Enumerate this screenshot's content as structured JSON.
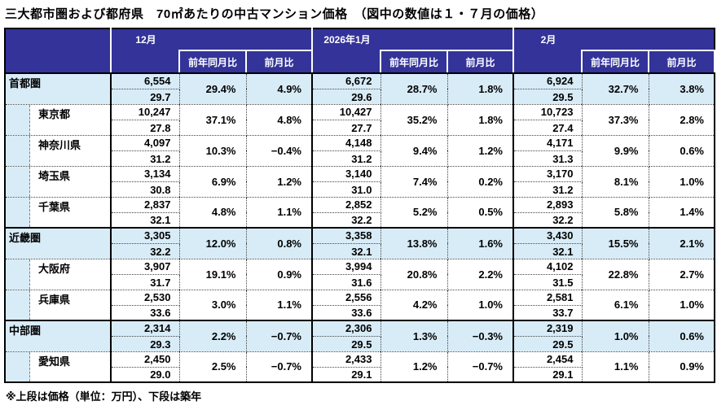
{
  "title": "三大都市圏および都府県　70㎡あたりの中古マンション価格　（図中の数値は１・７月の価格）",
  "footer_note": "※上段は価格（単位：万円）、下段は築年",
  "colors": {
    "header_bg": "#333399",
    "header_text": "#FFFFFF",
    "region_row_bg": "#D8ECF7",
    "border": "#000000"
  },
  "header": {
    "months": [
      "12月",
      "2026年1月",
      "2月"
    ],
    "yoy_label": "前年同月比",
    "mom_label": "前月比"
  },
  "rows": [
    {
      "name": "首都圏",
      "type": "region",
      "group_end": false,
      "months": [
        {
          "price": "6,554",
          "age": "29.7",
          "yoy": "29.4%",
          "mom": "4.9%"
        },
        {
          "price": "6,672",
          "age": "29.6",
          "yoy": "28.7%",
          "mom": "1.8%"
        },
        {
          "price": "6,924",
          "age": "29.5",
          "yoy": "32.7%",
          "mom": "3.8%"
        }
      ]
    },
    {
      "name": "東京都",
      "type": "pref",
      "group_end": false,
      "months": [
        {
          "price": "10,247",
          "age": "27.8",
          "yoy": "37.1%",
          "mom": "4.8%"
        },
        {
          "price": "10,427",
          "age": "27.7",
          "yoy": "35.2%",
          "mom": "1.8%"
        },
        {
          "price": "10,723",
          "age": "27.4",
          "yoy": "37.3%",
          "mom": "2.8%"
        }
      ]
    },
    {
      "name": "神奈川県",
      "type": "pref",
      "group_end": false,
      "months": [
        {
          "price": "4,097",
          "age": "31.2",
          "yoy": "10.3%",
          "mom": "−0.4%"
        },
        {
          "price": "4,148",
          "age": "31.2",
          "yoy": "9.4%",
          "mom": "1.2%"
        },
        {
          "price": "4,171",
          "age": "31.3",
          "yoy": "9.9%",
          "mom": "0.6%"
        }
      ]
    },
    {
      "name": "埼玉県",
      "type": "pref",
      "group_end": false,
      "months": [
        {
          "price": "3,134",
          "age": "30.8",
          "yoy": "6.9%",
          "mom": "1.2%"
        },
        {
          "price": "3,140",
          "age": "31.0",
          "yoy": "7.4%",
          "mom": "0.2%"
        },
        {
          "price": "3,170",
          "age": "31.2",
          "yoy": "8.1%",
          "mom": "1.0%"
        }
      ]
    },
    {
      "name": "千葉県",
      "type": "pref",
      "group_end": true,
      "months": [
        {
          "price": "2,837",
          "age": "32.1",
          "yoy": "4.8%",
          "mom": "1.1%"
        },
        {
          "price": "2,852",
          "age": "32.2",
          "yoy": "5.2%",
          "mom": "0.5%"
        },
        {
          "price": "2,893",
          "age": "32.2",
          "yoy": "5.8%",
          "mom": "1.4%"
        }
      ]
    },
    {
      "name": "近畿圏",
      "type": "region",
      "group_end": false,
      "months": [
        {
          "price": "3,305",
          "age": "32.2",
          "yoy": "12.0%",
          "mom": "0.8%"
        },
        {
          "price": "3,358",
          "age": "32.1",
          "yoy": "13.8%",
          "mom": "1.6%"
        },
        {
          "price": "3,430",
          "age": "32.1",
          "yoy": "15.5%",
          "mom": "2.1%"
        }
      ]
    },
    {
      "name": "大阪府",
      "type": "pref",
      "group_end": false,
      "months": [
        {
          "price": "3,907",
          "age": "31.7",
          "yoy": "19.1%",
          "mom": "0.9%"
        },
        {
          "price": "3,994",
          "age": "31.6",
          "yoy": "20.8%",
          "mom": "2.2%"
        },
        {
          "price": "4,102",
          "age": "31.5",
          "yoy": "22.8%",
          "mom": "2.7%"
        }
      ]
    },
    {
      "name": "兵庫県",
      "type": "pref",
      "group_end": true,
      "months": [
        {
          "price": "2,530",
          "age": "33.6",
          "yoy": "3.0%",
          "mom": "1.1%"
        },
        {
          "price": "2,556",
          "age": "33.6",
          "yoy": "4.2%",
          "mom": "1.0%"
        },
        {
          "price": "2,581",
          "age": "33.7",
          "yoy": "6.1%",
          "mom": "1.0%"
        }
      ]
    },
    {
      "name": "中部圏",
      "type": "region",
      "group_end": false,
      "months": [
        {
          "price": "2,314",
          "age": "29.3",
          "yoy": "2.2%",
          "mom": "−0.7%"
        },
        {
          "price": "2,306",
          "age": "29.5",
          "yoy": "1.3%",
          "mom": "−0.3%"
        },
        {
          "price": "2,319",
          "age": "29.5",
          "yoy": "1.0%",
          "mom": "0.6%"
        }
      ]
    },
    {
      "name": "愛知県",
      "type": "pref",
      "group_end": true,
      "months": [
        {
          "price": "2,450",
          "age": "29.0",
          "yoy": "2.5%",
          "mom": "−0.7%"
        },
        {
          "price": "2,433",
          "age": "29.1",
          "yoy": "1.2%",
          "mom": "−0.7%"
        },
        {
          "price": "2,454",
          "age": "29.1",
          "yoy": "1.1%",
          "mom": "0.9%"
        }
      ]
    }
  ]
}
